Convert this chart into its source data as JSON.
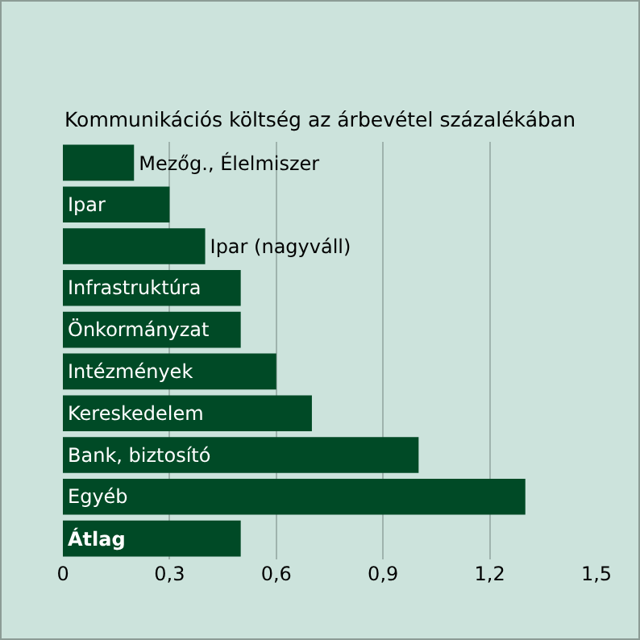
{
  "chart_data": {
    "type": "bar",
    "orientation": "horizontal",
    "title": "Kommunikációs költség az árbevétel százalékában",
    "categories": [
      "Mezőg., Élelmiszer",
      "Ipar",
      "Ipar (nagyváll)",
      "Infrastruktúra",
      "Önkormányzat",
      "Intézmények",
      "Kereskedelem",
      "Bank, biztosító",
      "Egyéb",
      "Átlag"
    ],
    "values": [
      0.2,
      0.3,
      0.4,
      0.5,
      0.5,
      0.6,
      0.7,
      1.0,
      1.3,
      0.5
    ],
    "color": "#004a26",
    "xlim": [
      0,
      1.5
    ],
    "xticks": [
      0,
      {
        "value": 0.3,
        "label": "0,3"
      },
      {
        "value": 0.6,
        "label": "0,6"
      },
      {
        "value": 0.9,
        "label": "0,9"
      },
      {
        "value": 1.2,
        "label": "1,2"
      },
      {
        "value": 1.5,
        "label": "1,5"
      }
    ],
    "grid": "x",
    "tick_labels": "x"
  }
}
